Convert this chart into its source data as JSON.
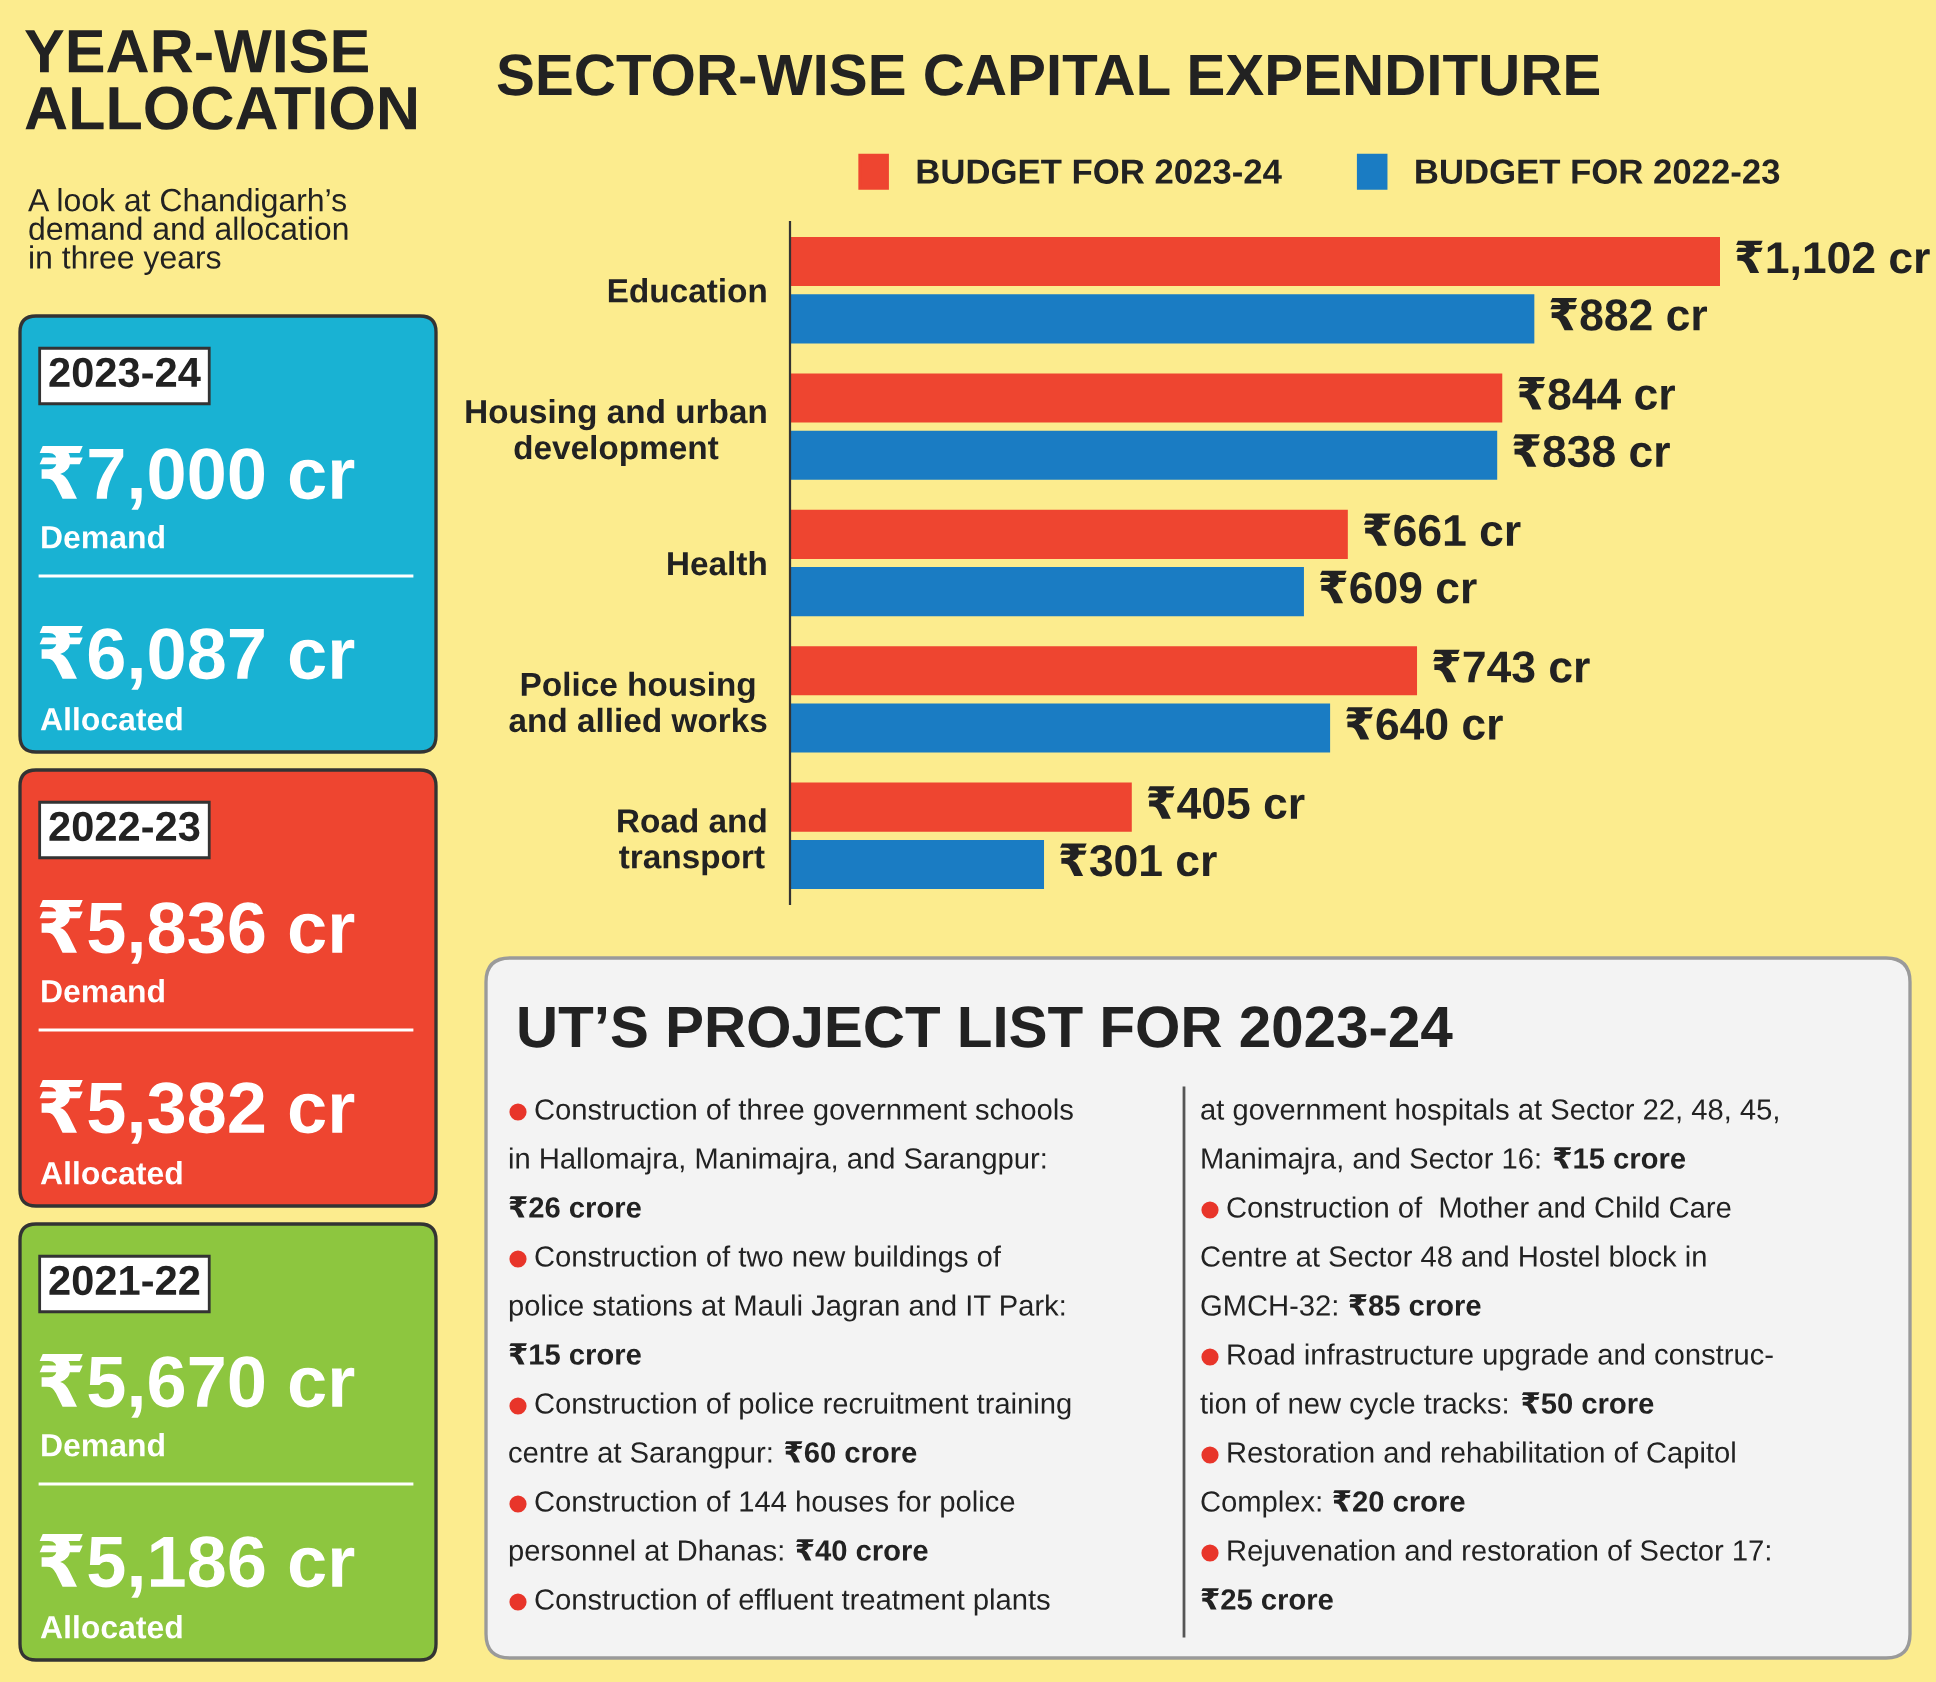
{
  "chart_data": [
    {
      "type": "other",
      "title": "YEAR-WISE ALLOCATION",
      "subtitle": "A look at Chandigarh’s\ndemand and allocation\nin three years",
      "colors": [
        "#19b2d3",
        "#ee4530",
        "#8dc63f"
      ],
      "annotations": [
        "2023-24",
        "₹7,000 cr",
        "Demand",
        "₹6,087 cr",
        "Allocated",
        "2022-23",
        "₹5,836 cr",
        "Demand",
        "₹5,382 cr",
        "Allocated",
        "2021-22",
        "₹5,670 cr",
        "Demand",
        "₹5,186 cr",
        "Allocated"
      ]
    },
    {
      "type": "bar",
      "orientation": "horizontal",
      "title": "SECTOR-WISE CAPITAL EXPENDITURE",
      "legend": "top",
      "categories": [
        "Education",
        "Housing and urban\ndevelopment",
        "Health",
        "Police housing\nand allied works",
        "Road and\ntransport"
      ],
      "series": [
        {
          "name": "BUDGET FOR 2023-24",
          "color": "#ee4530",
          "values": [
            1102,
            844,
            661,
            743,
            405
          ],
          "value_labels": [
            "₹1,102 cr",
            "₹844 cr",
            "₹661 cr",
            "₹743 cr",
            "₹405 cr"
          ]
        },
        {
          "name": "BUDGET FOR 2022-23",
          "color": "#1a7cc3",
          "values": [
            882,
            838,
            609,
            640,
            301
          ],
          "value_labels": [
            "₹882 cr",
            "₹838 cr",
            "₹609 cr",
            "₹640 cr",
            "₹301 cr"
          ]
        }
      ]
    },
    {
      "type": "other",
      "title": "UT’S PROJECT LIST FOR 2023-24",
      "annotations": [
        "Construction of three government schools\nin Hallomajra, Manimajra, and Sarangpur:",
        "₹26 crore",
        "Construction of two new buildings of\npolice stations at Mauli Jagran and IT Park:",
        "₹15 crore",
        "Construction of police recruitment training\ncentre at Sarangpur:",
        "₹60 crore",
        "Construction of 144 houses for police\npersonnel at Dhanas:",
        "₹40 crore",
        "Construction of effluent treatment plants\nat government hospitals at Sector 22, 48, 45,\nManimajra, and Sector 16:",
        "₹15 crore",
        "Construction of  Mother and Child Care\nCentre at Sector 48 and Hostel block in\nGMCH-32:",
        "₹85 crore",
        "Road infrastructure upgrade and construc-\ntion of new cycle tracks:",
        "₹50 crore",
        "Restoration and rehabilitation of Capitol\nComplex:",
        "₹20 crore",
        "Rejuvenation and restoration of Sector 17:",
        "₹25 crore"
      ]
    }
  ]
}
